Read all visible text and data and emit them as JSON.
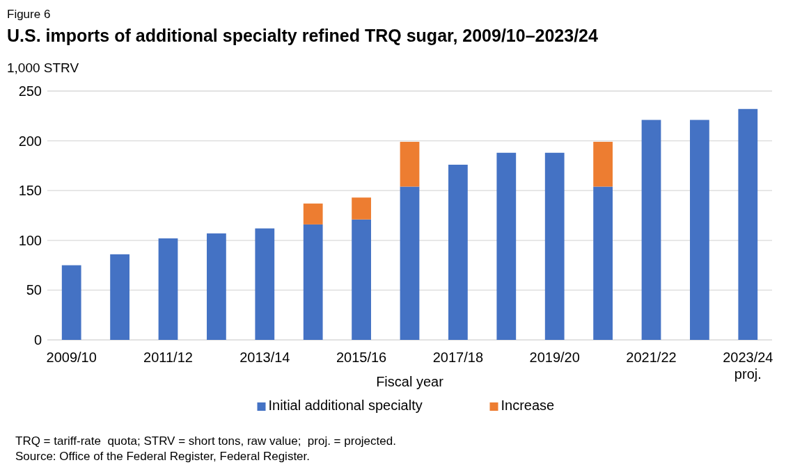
{
  "chart_data": {
    "type": "bar",
    "title": "U.S. imports of additional specialty refined TRQ sugar, 2009/10–2023/24",
    "ylabel": "1,000 STRV",
    "xlabel": "Fiscal year",
    "categories": [
      "2009/10",
      null,
      "2011/12",
      null,
      "2013/14",
      null,
      "2015/16",
      null,
      "2017/18",
      null,
      "2019/20",
      null,
      "2021/22",
      null,
      "2023/24\nproj."
    ],
    "stacked": true,
    "series": [
      {
        "name": "Initial additional specialty",
        "color": "#4472c4",
        "values": [
          75,
          86,
          102,
          107,
          112,
          116,
          121,
          154,
          176,
          188,
          188,
          154,
          221,
          221,
          232
        ]
      },
      {
        "name": "Increase",
        "color": "#ed7d31",
        "values": [
          null,
          null,
          null,
          null,
          null,
          21,
          22,
          45,
          null,
          null,
          null,
          45,
          null,
          null,
          null
        ]
      }
    ],
    "ylim": [
      0,
      250
    ],
    "yticks": [
      0,
      50,
      100,
      150,
      200,
      250
    ],
    "grid": "y",
    "legend": "bottom",
    "annotations": [
      "Figure 6",
      "TRQ = tariff-rate  quota; STRV = short tons, raw value;  proj. = projected.",
      "Source: Office of the Federal Register, Federal Register."
    ]
  }
}
